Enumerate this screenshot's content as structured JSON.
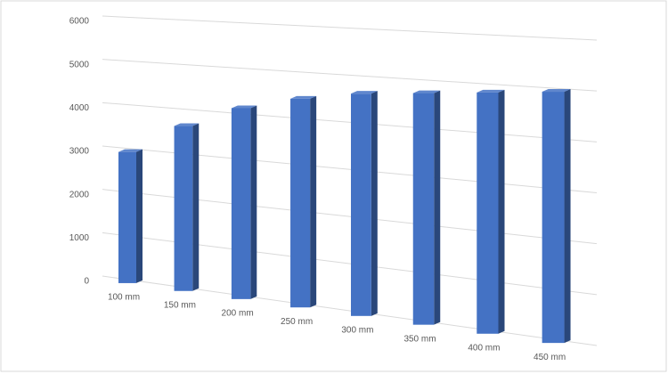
{
  "chart_data": {
    "type": "bar3d",
    "categories": [
      "100 mm",
      "150 mm",
      "200 mm",
      "250 mm",
      "300 mm",
      "350 mm",
      "400 mm",
      "450 mm"
    ],
    "values": [
      3000,
      3700,
      4200,
      4500,
      4700,
      4800,
      4900,
      5000
    ],
    "color": "#4472c4",
    "ylim": [
      0,
      6000
    ],
    "yticks": [
      0,
      1000,
      2000,
      3000,
      4000,
      5000,
      6000
    ],
    "grid": true
  }
}
